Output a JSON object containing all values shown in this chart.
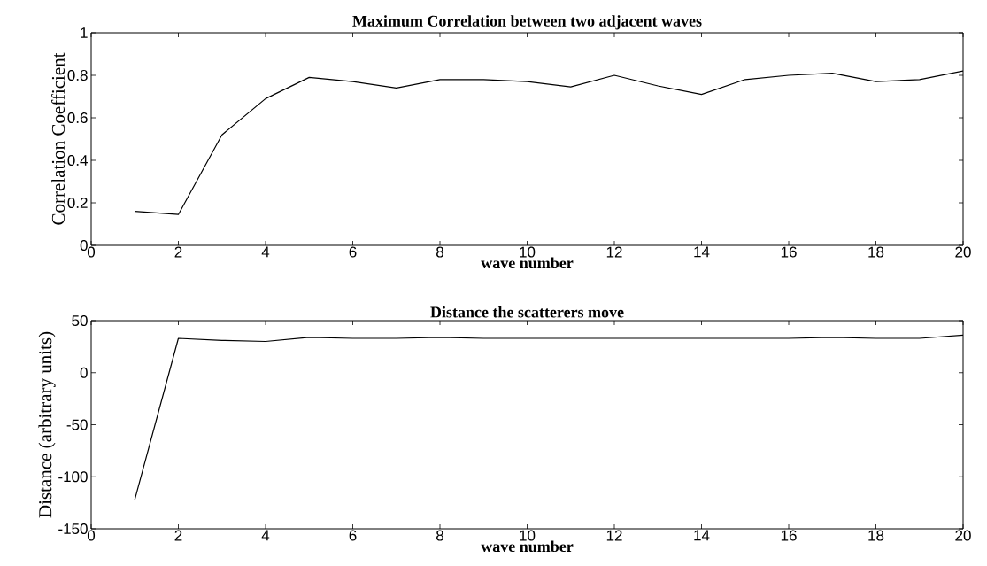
{
  "chart_data": [
    {
      "type": "line",
      "title": "Maximum Correlation between two adjacent waves",
      "xlabel": "wave number",
      "ylabel": "Correlation Coefficient",
      "color": "#000000",
      "grid": false,
      "x": [
        1,
        2,
        3,
        4,
        5,
        6,
        7,
        8,
        9,
        10,
        11,
        12,
        13,
        14,
        15,
        16,
        17,
        18,
        19,
        20
      ],
      "values": [
        0.16,
        0.145,
        0.52,
        0.69,
        0.79,
        0.77,
        0.74,
        0.78,
        0.78,
        0.77,
        0.745,
        0.8,
        0.75,
        0.71,
        0.78,
        0.8,
        0.81,
        0.77,
        0.78,
        0.82
      ],
      "xlim": [
        0,
        20
      ],
      "ylim": [
        0,
        1
      ],
      "xticks": [
        0,
        2,
        4,
        6,
        8,
        10,
        12,
        14,
        16,
        18,
        20
      ],
      "yticks": [
        0,
        0.2,
        0.4,
        0.6,
        0.8,
        1
      ]
    },
    {
      "type": "line",
      "title": "Distance the scatterers move",
      "xlabel": "wave number",
      "ylabel": "Distance (arbitrary units)",
      "color": "#000000",
      "grid": false,
      "x": [
        1,
        2,
        3,
        4,
        5,
        6,
        7,
        8,
        9,
        10,
        11,
        12,
        13,
        14,
        15,
        16,
        17,
        18,
        19,
        20
      ],
      "values": [
        -122,
        33,
        31,
        30,
        34,
        33,
        33,
        34,
        33,
        33,
        33,
        33,
        33,
        33,
        33,
        33,
        34,
        33,
        33,
        36
      ],
      "xlim": [
        0,
        20
      ],
      "ylim": [
        -150,
        50
      ],
      "xticks": [
        0,
        2,
        4,
        6,
        8,
        10,
        12,
        14,
        16,
        18,
        20
      ],
      "yticks": [
        -150,
        -100,
        -50,
        0,
        50
      ]
    }
  ]
}
